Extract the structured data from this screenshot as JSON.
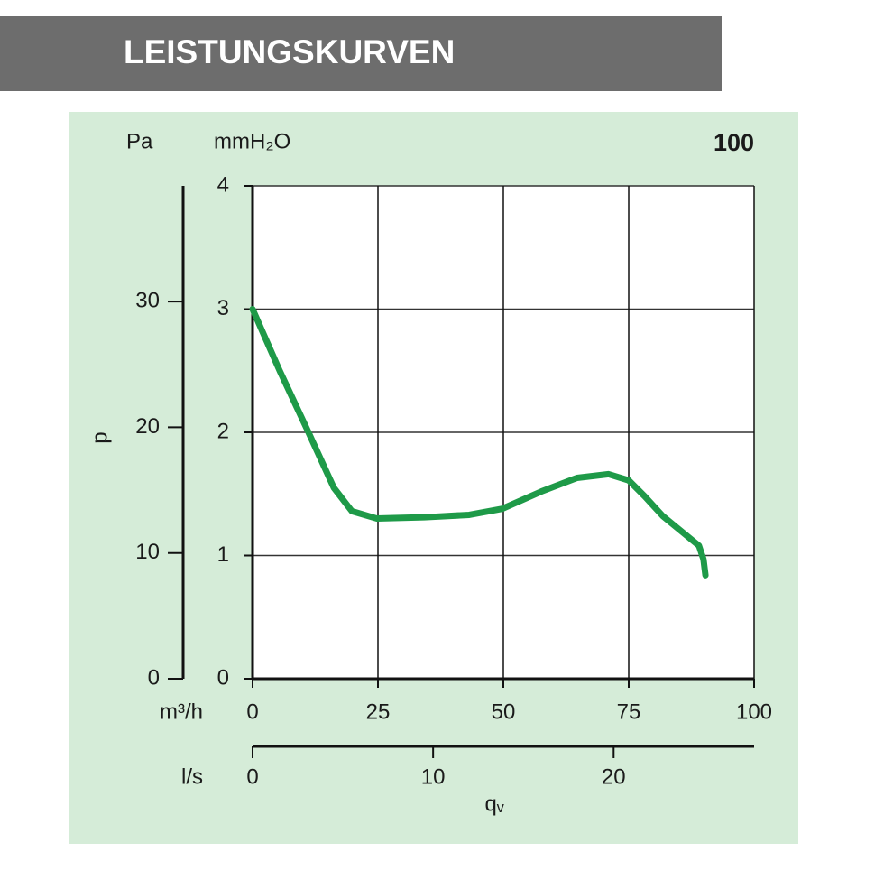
{
  "header": {
    "title": "LEISTUNGSKURVEN"
  },
  "chart_data": {
    "type": "line",
    "title": "100",
    "y_label": "p",
    "x_label": "qᵥ",
    "y_unit": "mmH₂O",
    "ylim": [
      0,
      4
    ],
    "yticks": [
      0,
      1,
      2,
      3,
      4
    ],
    "y2_unit": "Pa",
    "y2lim": [
      0,
      39.2
    ],
    "y2ticks": [
      0,
      10,
      20,
      30
    ],
    "x_unit": "m³/h",
    "xlim": [
      0,
      100
    ],
    "xticks": [
      0,
      25,
      50,
      75,
      100
    ],
    "x2_unit": "l/s",
    "x2lim": [
      0,
      27.78
    ],
    "x2ticks": [
      0,
      10,
      20
    ],
    "grid": true,
    "series": [
      {
        "color": "#1e9a48",
        "x": [
          0,
          5.4,
          10.8,
          16.2,
          19.8,
          24.8,
          34.2,
          43.2,
          49.8,
          57.6,
          64.7,
          71,
          75,
          78.2,
          81.8,
          86.3,
          89,
          89.9,
          90.3
        ],
        "values": [
          3.0,
          2.5,
          2.03,
          1.55,
          1.36,
          1.3,
          1.31,
          1.33,
          1.38,
          1.52,
          1.63,
          1.66,
          1.61,
          1.48,
          1.32,
          1.17,
          1.08,
          0.97,
          0.84
        ]
      }
    ]
  }
}
